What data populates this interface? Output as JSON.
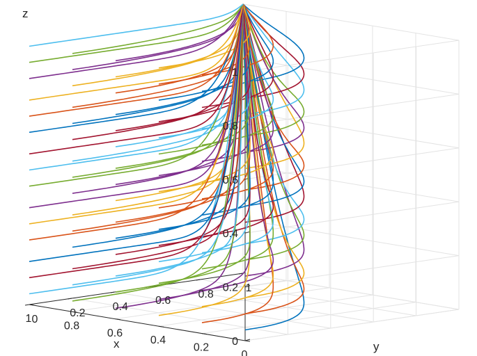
{
  "chart_data": {
    "type": "line3d",
    "title": "",
    "xlabel": "x",
    "ylabel": "y",
    "zlabel": "z",
    "xlim": [
      0,
      1
    ],
    "ylim": [
      0,
      1
    ],
    "zlim": [
      0,
      1
    ],
    "xticks": [
      "0",
      "0.2",
      "0.4",
      "0.6",
      "0.8",
      "1"
    ],
    "yticks": [
      "0",
      "0.2",
      "0.4",
      "0.6",
      "0.8",
      "1"
    ],
    "zticks": [
      "0",
      "0.2",
      "0.4",
      "0.6",
      "0.8",
      "1"
    ],
    "grid": true,
    "convergence_point": {
      "x": 1,
      "y": 1,
      "z": 1
    },
    "initial_x_values": [
      0,
      0.2,
      0.4,
      0.6,
      0.8,
      1
    ],
    "initial_z_values": [
      0.1,
      0.3,
      0.5,
      0.7,
      0.9
    ],
    "initial_y_value": 0,
    "palette": [
      "#0072BD",
      "#D95319",
      "#EDB120",
      "#7E2F8E",
      "#77AC30",
      "#4DBEEE",
      "#A2142F"
    ]
  }
}
